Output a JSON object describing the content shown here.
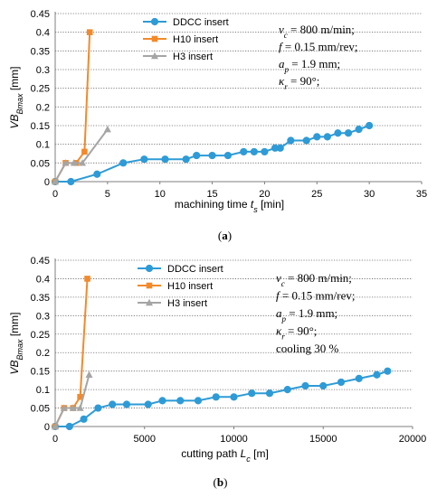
{
  "chart_data": [
    {
      "type": "line",
      "panel_label": "(a)",
      "xlabel": "machining time t_s [min]",
      "xlabel_main": "machining time ",
      "xlabel_var": "t",
      "xlabel_sub": "s",
      "xlabel_unit": " [min]",
      "ylabel": "VB_Bmax [mm]",
      "ylabel_main": "VB",
      "ylabel_sub": "Bmax",
      "ylabel_unit": " [mm]",
      "xlim": [
        0,
        35
      ],
      "ylim": [
        0,
        0.45
      ],
      "xticks": [
        "0",
        "5",
        "10",
        "15",
        "20",
        "25",
        "30",
        "35"
      ],
      "yticks": [
        "0",
        "0.05",
        "0.1",
        "0.15",
        "0.2",
        "0.25",
        "0.3",
        "0.35",
        "0.4",
        "0.45"
      ],
      "grid": "horizontal-dotted",
      "legend_position": "top-center",
      "conditions": [
        "v_c = 800 m/min;",
        "f = 0.15 mm/rev;",
        "a_p = 1.9 mm;",
        "κ_r = 90°;"
      ],
      "series": [
        {
          "name": "DDCC insert",
          "color": "#2e9bd6",
          "marker": "circle",
          "x": [
            0,
            1.5,
            4,
            6.5,
            8.5,
            10.5,
            12.5,
            13.5,
            15,
            16.5,
            18,
            19,
            20,
            21,
            21.5,
            22.5,
            24,
            25,
            26,
            27,
            28,
            29,
            30
          ],
          "y": [
            0,
            0,
            0.02,
            0.05,
            0.06,
            0.06,
            0.06,
            0.07,
            0.07,
            0.07,
            0.08,
            0.08,
            0.08,
            0.09,
            0.09,
            0.11,
            0.11,
            0.12,
            0.12,
            0.13,
            0.13,
            0.14,
            0.15
          ]
        },
        {
          "name": "H10 insert",
          "color": "#f28a2b",
          "marker": "square",
          "x": [
            0,
            1,
            2,
            2.8,
            3.3
          ],
          "y": [
            0,
            0.05,
            0.05,
            0.08,
            0.4
          ]
        },
        {
          "name": "H3 insert",
          "color": "#a5a5a5",
          "marker": "triangle",
          "x": [
            0,
            1,
            1.8,
            2.6,
            5
          ],
          "y": [
            0,
            0.05,
            0.05,
            0.05,
            0.14
          ]
        }
      ]
    },
    {
      "type": "line",
      "panel_label": "(b)",
      "xlabel": "cutting path L_c [m]",
      "xlabel_main": "cutting path ",
      "xlabel_var": "L",
      "xlabel_sub": "c",
      "xlabel_unit": " [m]",
      "ylabel": "VB_Bmax [mm]",
      "ylabel_main": "VB",
      "ylabel_sub": "Bmax",
      "ylabel_unit": " [mm]",
      "xlim": [
        0,
        20000
      ],
      "ylim": [
        0,
        0.45
      ],
      "xticks": [
        "0",
        "5000",
        "10000",
        "15000",
        "20000"
      ],
      "yticks": [
        "0",
        "0.05",
        "0.1",
        "0.15",
        "0.2",
        "0.25",
        "0.3",
        "0.35",
        "0.4",
        "0.45"
      ],
      "grid": "horizontal-dotted",
      "legend_position": "top-center",
      "conditions": [
        "v_c = 800 m/min;",
        "f = 0.15 mm/rev;",
        "a_p = 1.9 mm;",
        "κ_r = 90°;",
        "cooling 30 %"
      ],
      "series": [
        {
          "name": "DDCC insert",
          "color": "#2e9bd6",
          "marker": "circle",
          "x": [
            0,
            800,
            1600,
            2400,
            3200,
            4000,
            5200,
            6000,
            7000,
            8000,
            9000,
            10000,
            11000,
            12000,
            13000,
            14000,
            15000,
            16000,
            17000,
            18000,
            18600
          ],
          "y": [
            0,
            0,
            0.02,
            0.05,
            0.06,
            0.06,
            0.06,
            0.07,
            0.07,
            0.07,
            0.08,
            0.08,
            0.09,
            0.09,
            0.1,
            0.11,
            0.11,
            0.12,
            0.13,
            0.14,
            0.15
          ]
        },
        {
          "name": "H10 insert",
          "color": "#f28a2b",
          "marker": "square",
          "x": [
            0,
            500,
            1000,
            1400,
            1800
          ],
          "y": [
            0,
            0.05,
            0.05,
            0.08,
            0.4
          ]
        },
        {
          "name": "H3 insert",
          "color": "#a5a5a5",
          "marker": "triangle",
          "x": [
            0,
            500,
            1000,
            1400,
            1900
          ],
          "y": [
            0,
            0.05,
            0.05,
            0.05,
            0.14
          ]
        }
      ]
    }
  ]
}
